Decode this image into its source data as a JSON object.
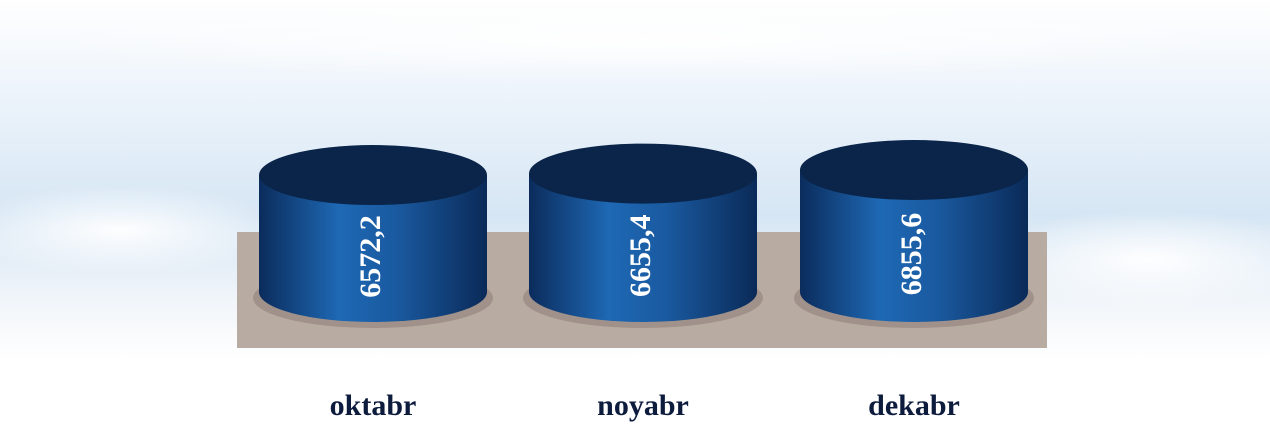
{
  "chart_data": {
    "type": "cylinder-bar",
    "categories": [
      "oktabr",
      "noyabr",
      "dekabr"
    ],
    "values": [
      6572.2,
      6655.4,
      6855.6
    ],
    "value_labels": [
      "6572,2",
      "6655,4",
      "6855,6"
    ],
    "color": "#1b5ea8"
  }
}
